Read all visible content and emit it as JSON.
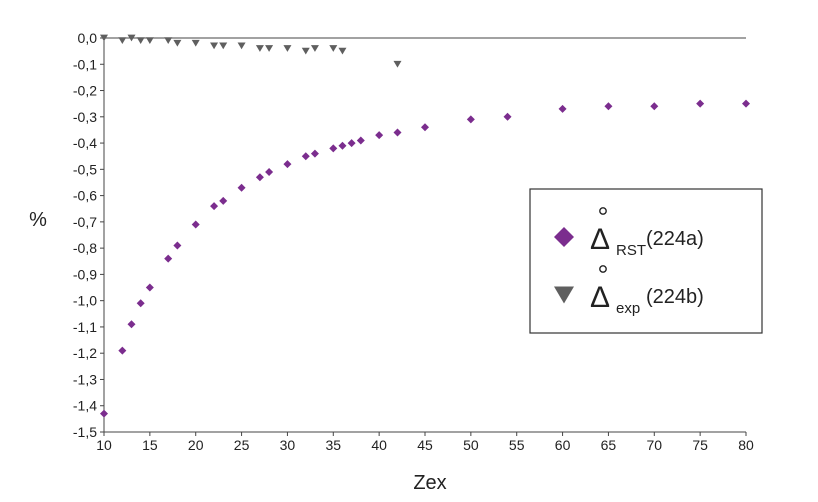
{
  "chart_data": {
    "type": "scatter",
    "title": "",
    "xlabel": "Zex",
    "ylabel": "%",
    "xlim": [
      10,
      80
    ],
    "ylim": [
      -1.5,
      0.0
    ],
    "x_ticks": [
      10,
      15,
      20,
      25,
      30,
      35,
      40,
      45,
      50,
      55,
      60,
      65,
      70,
      75,
      80
    ],
    "y_ticks": [
      0.0,
      -0.1,
      -0.2,
      -0.3,
      -0.4,
      -0.5,
      -0.6,
      -0.7,
      -0.8,
      -0.9,
      -1.0,
      -1.1,
      -1.2,
      -1.3,
      -1.4,
      -1.5
    ],
    "y_tick_labels": [
      "0,0",
      "-0,1",
      "-0,2",
      "-0,3",
      "-0,4",
      "-0,5",
      "-0,6",
      "-0,7",
      "-0,8",
      "-0,9",
      "-1,0",
      "-1,1",
      "-1,2",
      "-1,3",
      "-1,4",
      "-1,5"
    ],
    "grid": false,
    "legend_position": "right",
    "series": [
      {
        "name": "Δ̊RST (224a)",
        "legend_symbol": "Δ",
        "legend_subscript": "RST",
        "legend_suffix": " (224a)",
        "marker": "diamond",
        "color": "#7b2d8e",
        "points": [
          [
            10,
            -1.43
          ],
          [
            12,
            -1.19
          ],
          [
            13,
            -1.09
          ],
          [
            14,
            -1.01
          ],
          [
            15,
            -0.95
          ],
          [
            17,
            -0.84
          ],
          [
            18,
            -0.79
          ],
          [
            20,
            -0.71
          ],
          [
            22,
            -0.64
          ],
          [
            23,
            -0.62
          ],
          [
            25,
            -0.57
          ],
          [
            27,
            -0.53
          ],
          [
            28,
            -0.51
          ],
          [
            30,
            -0.48
          ],
          [
            32,
            -0.45
          ],
          [
            33,
            -0.44
          ],
          [
            35,
            -0.42
          ],
          [
            36,
            -0.41
          ],
          [
            37,
            -0.4
          ],
          [
            38,
            -0.39
          ],
          [
            40,
            -0.37
          ],
          [
            42,
            -0.36
          ],
          [
            45,
            -0.34
          ],
          [
            50,
            -0.31
          ],
          [
            54,
            -0.3
          ],
          [
            60,
            -0.27
          ],
          [
            65,
            -0.26
          ],
          [
            70,
            -0.26
          ],
          [
            75,
            -0.25
          ],
          [
            80,
            -0.25
          ]
        ]
      },
      {
        "name": "Δ̊exp (224b)",
        "legend_symbol": "Δ",
        "legend_subscript": "exp",
        "legend_suffix": " (224b)",
        "marker": "triangle-down",
        "color": "#5f5f5f",
        "points": [
          [
            10,
            0.0
          ],
          [
            12,
            -0.01
          ],
          [
            13,
            0.0
          ],
          [
            14,
            -0.01
          ],
          [
            15,
            -0.01
          ],
          [
            17,
            -0.01
          ],
          [
            18,
            -0.02
          ],
          [
            20,
            -0.02
          ],
          [
            22,
            -0.03
          ],
          [
            23,
            -0.03
          ],
          [
            25,
            -0.03
          ],
          [
            27,
            -0.04
          ],
          [
            28,
            -0.04
          ],
          [
            30,
            -0.04
          ],
          [
            32,
            -0.05
          ],
          [
            33,
            -0.04
          ],
          [
            35,
            -0.04
          ],
          [
            36,
            -0.05
          ],
          [
            42,
            -0.1
          ]
        ]
      }
    ]
  }
}
